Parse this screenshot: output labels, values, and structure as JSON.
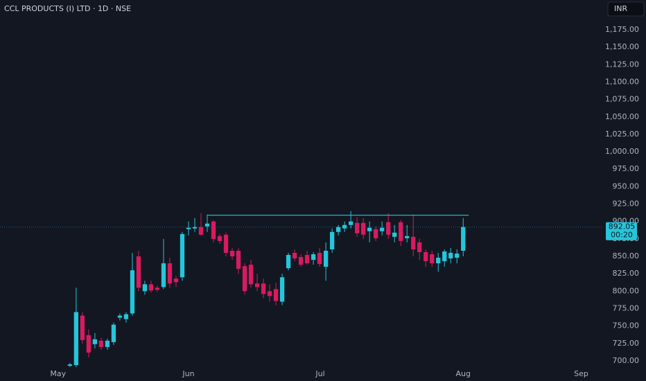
{
  "chart_data": {
    "type": "candlestick",
    "title": "CCL PRODUCTS (I) LTD · 1D · NSE",
    "currency": "INR",
    "up_color": "#26c6da",
    "down_color": "#d81b60",
    "x": [
      0,
      1,
      2,
      3,
      4,
      5,
      6,
      7,
      8,
      9,
      10,
      11,
      12,
      13,
      14,
      15,
      16,
      17,
      18,
      19,
      20,
      21,
      22,
      23,
      24,
      25,
      26,
      27,
      28,
      29,
      30,
      31,
      32,
      33,
      34,
      35,
      36,
      37,
      38,
      39,
      40,
      41,
      42,
      43,
      44,
      45,
      46,
      47,
      48,
      49,
      50,
      51,
      52,
      53,
      54,
      55,
      56,
      57,
      58,
      59,
      60,
      61,
      62,
      63
    ],
    "open": [
      693,
      694,
      765,
      737,
      724,
      729,
      720,
      727,
      762,
      760,
      768,
      850,
      800,
      810,
      805,
      806,
      840,
      818,
      820,
      889,
      890,
      892,
      893,
      900,
      879,
      881,
      858,
      858,
      836,
      838,
      811,
      811,
      800,
      803,
      785,
      833,
      855,
      849,
      852,
      845,
      855,
      835,
      860,
      885,
      890,
      895,
      898,
      898,
      886,
      889,
      886,
      899,
      878,
      899,
      876,
      878,
      870,
      856,
      853,
      840,
      843,
      847,
      848,
      858
    ],
    "high": [
      697,
      805,
      770,
      745,
      740,
      733,
      732,
      755,
      768,
      770,
      855,
      858,
      815,
      815,
      808,
      875,
      848,
      822,
      885,
      900,
      905,
      912,
      910,
      902,
      882,
      884,
      862,
      862,
      840,
      845,
      825,
      818,
      810,
      812,
      825,
      855,
      860,
      853,
      858,
      856,
      862,
      870,
      890,
      895,
      900,
      915,
      906,
      905,
      900,
      893,
      900,
      912,
      895,
      902,
      895,
      910,
      875,
      860,
      858,
      855,
      860,
      862,
      860,
      905
    ],
    "low": [
      691,
      691,
      725,
      705,
      718,
      716,
      716,
      723,
      758,
      755,
      765,
      800,
      795,
      798,
      799,
      803,
      805,
      806,
      815,
      880,
      885,
      880,
      885,
      870,
      868,
      850,
      845,
      825,
      795,
      805,
      800,
      790,
      785,
      780,
      780,
      830,
      843,
      835,
      838,
      838,
      835,
      815,
      855,
      880,
      885,
      890,
      878,
      875,
      870,
      872,
      880,
      875,
      870,
      865,
      870,
      850,
      845,
      835,
      835,
      828,
      835,
      840,
      840,
      850
    ],
    "close": [
      695,
      770,
      730,
      712,
      731,
      720,
      729,
      752,
      765,
      767,
      830,
      805,
      810,
      801,
      802,
      840,
      811,
      813,
      882,
      891,
      892,
      881,
      897,
      875,
      872,
      855,
      850,
      832,
      800,
      810,
      806,
      796,
      793,
      786,
      820,
      852,
      847,
      838,
      840,
      853,
      839,
      858,
      885,
      892,
      895,
      900,
      883,
      881,
      891,
      876,
      891,
      881,
      884,
      872,
      879,
      860,
      856,
      843,
      840,
      848,
      857,
      855,
      854,
      892.05
    ],
    "xlim": [
      -11.2,
      85.4
    ],
    "xticks": [
      {
        "value": -1.9,
        "label": "May"
      },
      {
        "value": 19,
        "label": "Jun"
      },
      {
        "value": 40.1,
        "label": "Jul"
      },
      {
        "value": 63,
        "label": "Aug"
      },
      {
        "value": 81.9,
        "label": "Sep"
      }
    ],
    "ylim": [
      691.06,
      1217.7
    ],
    "yticks": [
      {
        "value": 700,
        "label": "700.00"
      },
      {
        "value": 725,
        "label": "725.00"
      },
      {
        "value": 750,
        "label": "750.00"
      },
      {
        "value": 775,
        "label": "775.00"
      },
      {
        "value": 800,
        "label": "800.00"
      },
      {
        "value": 825,
        "label": "825.00"
      },
      {
        "value": 850,
        "label": "850.00"
      },
      {
        "value": 875,
        "label": "875.00"
      },
      {
        "value": 900,
        "label": "900.00"
      },
      {
        "value": 925,
        "label": "925.00"
      },
      {
        "value": 950,
        "label": "950.00"
      },
      {
        "value": 975,
        "label": "975.00"
      },
      {
        "value": 1000,
        "label": "1,000.00"
      },
      {
        "value": 1025,
        "label": "1,025.00"
      },
      {
        "value": 1050,
        "label": "1,050.00"
      },
      {
        "value": 1075,
        "label": "1,075.00"
      },
      {
        "value": 1100,
        "label": "1,100.00"
      },
      {
        "value": 1125,
        "label": "1,125.00"
      },
      {
        "value": 1150,
        "label": "1,150.00"
      },
      {
        "value": 1175,
        "label": "1,175.00"
      }
    ],
    "level_line": {
      "value": 909,
      "from": 22,
      "to": 63.9,
      "color": "#26c6da"
    },
    "last_price": {
      "value": 892.05,
      "countdown": "00:20",
      "color": "#26c6da"
    }
  }
}
